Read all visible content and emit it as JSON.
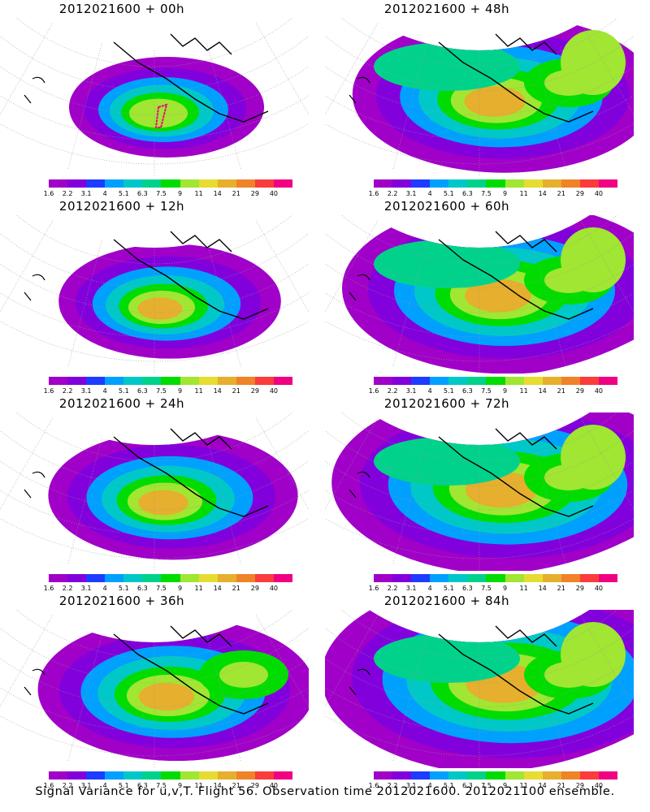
{
  "colorbar": {
    "colors": [
      "#a000c8",
      "#8200dc",
      "#1e3cff",
      "#00a0ff",
      "#00c8c8",
      "#00d28c",
      "#00dc00",
      "#a0e632",
      "#e6dc32",
      "#e6af2d",
      "#f08228",
      "#fa3c3c",
      "#f00082"
    ],
    "labels": [
      "1.6",
      "2.2",
      "3.1",
      "4",
      "5.1",
      "6.3",
      "7.5",
      "9",
      "11",
      "14",
      "21",
      "29",
      "40"
    ]
  },
  "panels": [
    {
      "title": "2012021600 + 00h",
      "level": 0,
      "marker": true
    },
    {
      "title": "2012021600 + 48h",
      "level": 4,
      "marker": false
    },
    {
      "title": "2012021600 + 12h",
      "level": 1,
      "marker": false
    },
    {
      "title": "2012021600 + 60h",
      "level": 5,
      "marker": false
    },
    {
      "title": "2012021600 + 24h",
      "level": 2,
      "marker": false
    },
    {
      "title": "2012021600 + 72h",
      "level": 6,
      "marker": false
    },
    {
      "title": "2012021600 + 36h",
      "level": 3,
      "marker": false
    },
    {
      "title": "2012021600 + 84h",
      "level": 7,
      "marker": false
    }
  ],
  "footer": "Signal Variance for u,v,T. Flight 56. Observation time 2012021600. 2012021100 ensemble."
}
